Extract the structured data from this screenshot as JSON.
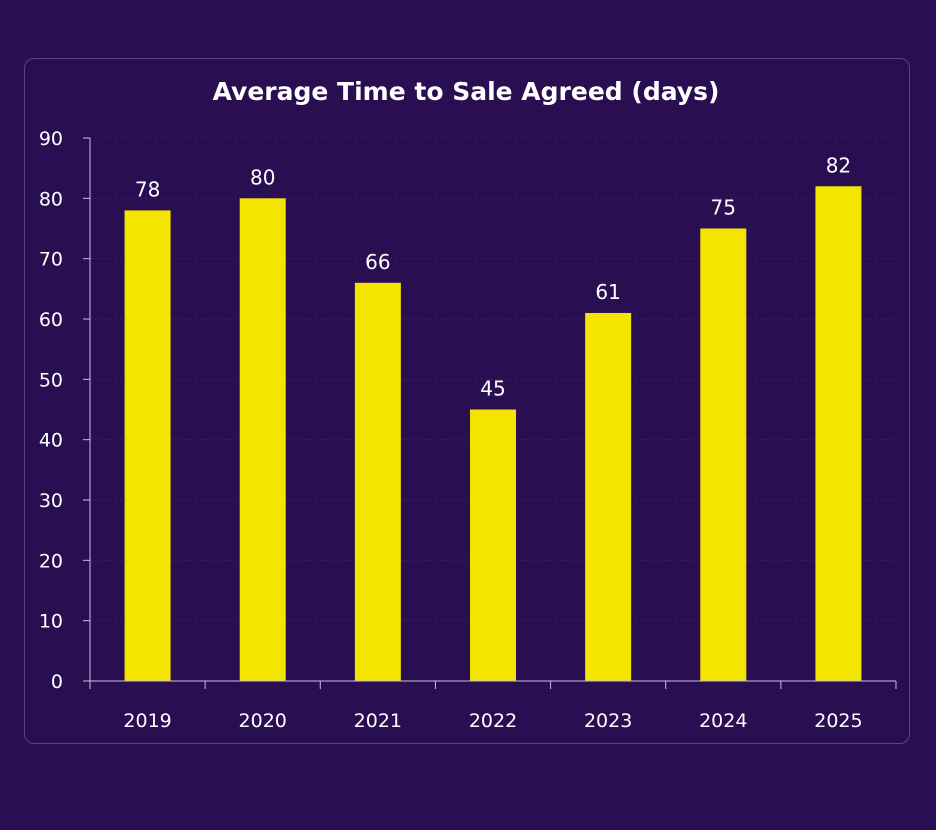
{
  "colors": {
    "background": "#2a0e52",
    "bar": "#f3e500",
    "axis": "#c9bde0",
    "gridline": "#3c2466",
    "text": "#ffffff"
  },
  "chart_data": {
    "type": "bar",
    "title": "Average Time to Sale Agreed (days)",
    "xlabel": "",
    "ylabel": "",
    "categories": [
      "2019",
      "2020",
      "2021",
      "2022",
      "2023",
      "2024",
      "2025"
    ],
    "values": [
      78,
      80,
      66,
      45,
      61,
      75,
      82
    ],
    "ylim": [
      0,
      90
    ],
    "yticks": [
      0,
      10,
      20,
      30,
      40,
      50,
      60,
      70,
      80,
      90
    ],
    "data_labels": true,
    "grid": true,
    "legend": false
  }
}
